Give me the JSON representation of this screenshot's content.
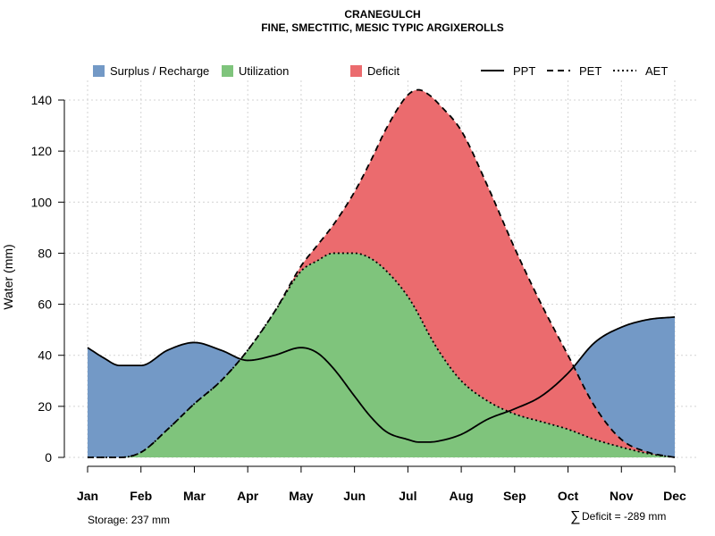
{
  "chart_data": {
    "type": "area",
    "title": "CRANEGULCH",
    "subtitle": "FINE, SMECTITIC, MESIC TYPIC ARGIXEROLLS",
    "xlabel": "",
    "ylabel": "Water (mm)",
    "ylim": [
      0,
      145
    ],
    "yticks": [
      "0",
      "20",
      "40",
      "60",
      "80",
      "100",
      "120",
      "140"
    ],
    "categories": [
      "Jan",
      "Feb",
      "Mar",
      "Apr",
      "May",
      "Jun",
      "Jul",
      "Aug",
      "Sep",
      "Oct",
      "Nov",
      "Dec"
    ],
    "x": [
      1,
      1.3,
      1.6,
      2,
      2.5,
      3,
      3.5,
      4,
      4.5,
      5,
      5.3,
      5.6,
      6,
      6.3,
      6.6,
      7,
      7.2,
      7.4,
      7.6,
      8,
      8.5,
      9,
      9.5,
      10,
      10.5,
      11,
      11.5,
      12
    ],
    "series": [
      {
        "name": "PPT",
        "style": "solid",
        "values": [
          43,
          39,
          36,
          36,
          42,
          45,
          42,
          38,
          40,
          43,
          41,
          35,
          24,
          16,
          10,
          7,
          6,
          6,
          6.5,
          9,
          15,
          19,
          24,
          33,
          45,
          51,
          54,
          55
        ]
      },
      {
        "name": "PET",
        "style": "dashed",
        "values": [
          0,
          0,
          0,
          2,
          11,
          21,
          30,
          42,
          57,
          75,
          83,
          91,
          104,
          116,
          129,
          142,
          144,
          142,
          138,
          128,
          106,
          82,
          60,
          40,
          20,
          7,
          2,
          0
        ]
      },
      {
        "name": "AET",
        "style": "dotted",
        "values": [
          0,
          0,
          0,
          2,
          11,
          21,
          30,
          42,
          57,
          73,
          77,
          80,
          80,
          78,
          73,
          63,
          56,
          48,
          41,
          30,
          22,
          17,
          14,
          11,
          7,
          4,
          1.5,
          0
        ]
      }
    ],
    "areas": [
      {
        "name": "Surplus / Recharge",
        "color": "#7399C6"
      },
      {
        "name": "Utilization",
        "color": "#7FC47C"
      },
      {
        "name": "Deficit",
        "color": "#EB6B6E"
      }
    ],
    "grid": true,
    "legend_position": "top"
  },
  "footer": {
    "storage": "Storage: 237 mm",
    "deficit_symbol": "∑",
    "deficit": "Deficit = -289 mm"
  }
}
